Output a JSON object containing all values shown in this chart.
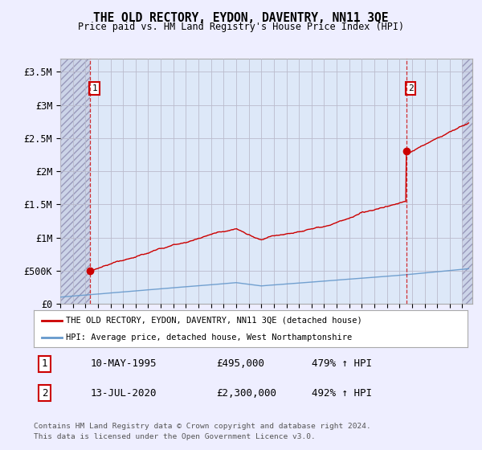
{
  "title": "THE OLD RECTORY, EYDON, DAVENTRY, NN11 3QE",
  "subtitle": "Price paid vs. HM Land Registry's House Price Index (HPI)",
  "ylabel_ticks": [
    "£0",
    "£500K",
    "£1M",
    "£1.5M",
    "£2M",
    "£2.5M",
    "£3M",
    "£3.5M"
  ],
  "ytick_values": [
    0,
    500000,
    1000000,
    1500000,
    2000000,
    2500000,
    3000000,
    3500000
  ],
  "ylim": [
    0,
    3700000
  ],
  "xlim_start": 1993.0,
  "xlim_end": 2025.8,
  "sale1_x": 1995.36,
  "sale1_y": 495000,
  "sale1_label": "1",
  "sale1_date": "10-MAY-1995",
  "sale1_price": "£495,000",
  "sale1_hpi": "479% ↑ HPI",
  "sale2_x": 2020.53,
  "sale2_y": 2300000,
  "sale2_label": "2",
  "sale2_date": "13-JUL-2020",
  "sale2_price": "£2,300,000",
  "sale2_hpi": "492% ↑ HPI",
  "red_line_color": "#cc0000",
  "blue_line_color": "#6699cc",
  "background_color": "#eeeeff",
  "plot_bg_color": "#dde8f8",
  "grid_color": "#bbbbcc",
  "legend_line1": "THE OLD RECTORY, EYDON, DAVENTRY, NN11 3QE (detached house)",
  "legend_line2": "HPI: Average price, detached house, West Northamptonshire",
  "footer1": "Contains HM Land Registry data © Crown copyright and database right 2024.",
  "footer2": "This data is licensed under the Open Government Licence v3.0."
}
